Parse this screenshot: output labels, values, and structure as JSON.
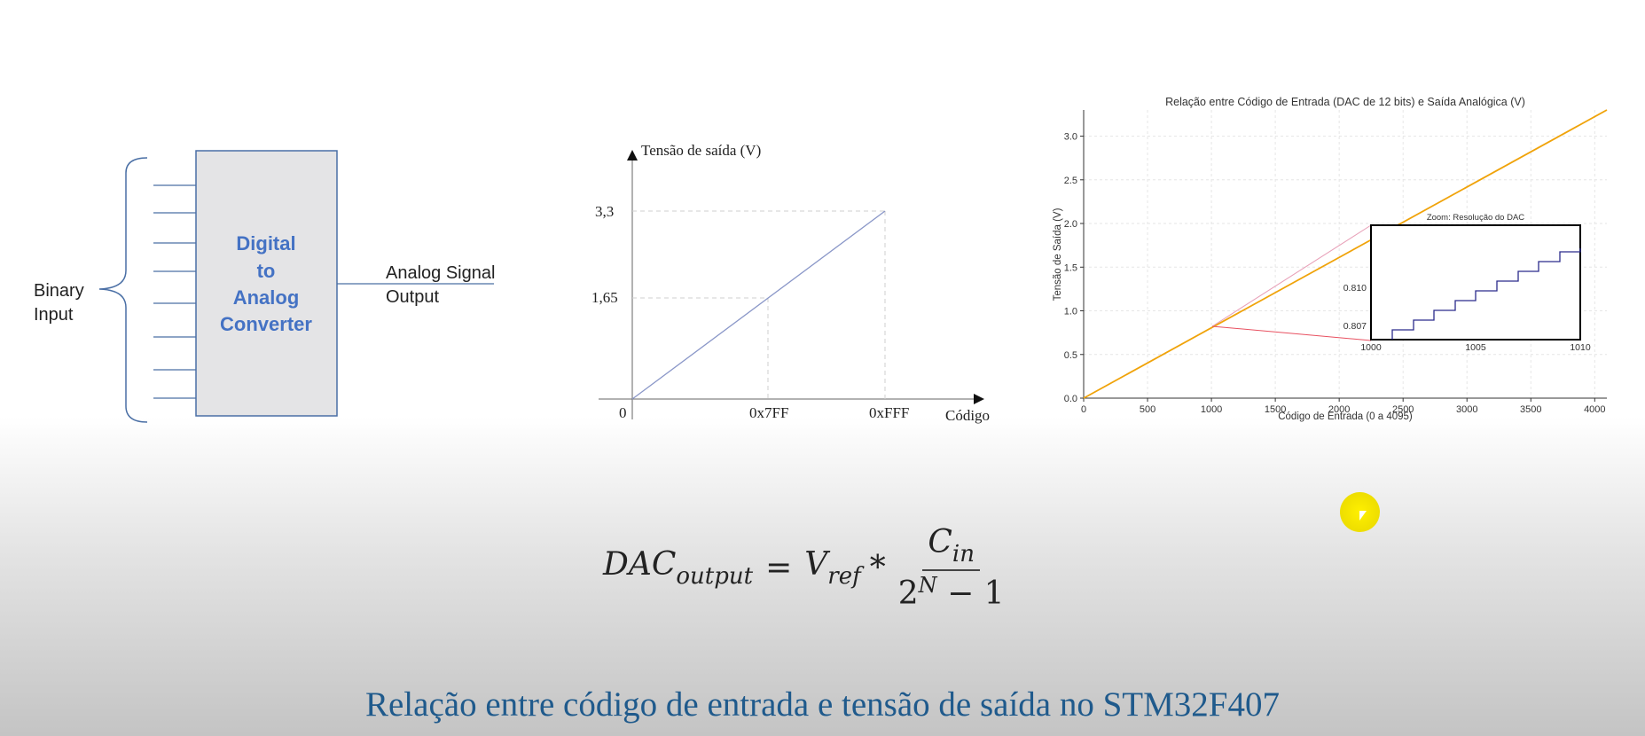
{
  "block_diagram": {
    "input_label_line1": "Binary",
    "input_label_line2": "Input",
    "box_line1": "Digital",
    "box_line2": "to",
    "box_line3": "Analog",
    "box_line4": "Converter",
    "output_label_line1": "Analog Signal",
    "output_label_line2": "Output",
    "box_color": "#e4e4e6",
    "line_color": "#4a6fa5",
    "text_color": "#4472c4"
  },
  "simple_chart": {
    "ylabel": "Tensão de saída (V)",
    "xlabel": "Código",
    "origin_label": "0",
    "y_ticks": [
      "3,3",
      "1,65"
    ],
    "x_ticks": [
      "0x7FF",
      "0xFFF"
    ]
  },
  "chart_data": {
    "type": "line",
    "title": "Relação entre Código de Entrada (DAC de 12 bits) e Saída Analógica (V)",
    "xlabel": "Código de Entrada (0 a 4095)",
    "ylabel": "Tensão de Saída (V)",
    "xlim": [
      0,
      4095
    ],
    "ylim": [
      0,
      3.3
    ],
    "x_ticks": [
      "0",
      "500",
      "1000",
      "1500",
      "2000",
      "2500",
      "3000",
      "3500",
      "4000"
    ],
    "y_ticks": [
      "0.0",
      "0.5",
      "1.0",
      "1.5",
      "2.0",
      "2.5",
      "3.0"
    ],
    "grid": true,
    "line_color": "#f0a30a",
    "series": [
      {
        "x": [
          0,
          4095
        ],
        "y": [
          0,
          3.3
        ]
      }
    ],
    "inset": {
      "title": "Zoom: Resolução do DAC",
      "xlim": [
        1000,
        1010
      ],
      "x_ticks": [
        "1000",
        "1005",
        "1010"
      ],
      "y_ticks": [
        "0.807",
        "0.810"
      ],
      "step_color": "#2b2b8c"
    }
  },
  "formula": {
    "lhs": "DAC",
    "lhs_sub": "output",
    "equals": "=",
    "vref": "V",
    "vref_sub": "ref",
    "times": "*",
    "numerator": "C",
    "numerator_sub": "in",
    "den_base": "2",
    "den_exp": "N",
    "den_rest": "− 1"
  },
  "caption": "Relação entre código de entrada e tensão de saída no STM32F407"
}
